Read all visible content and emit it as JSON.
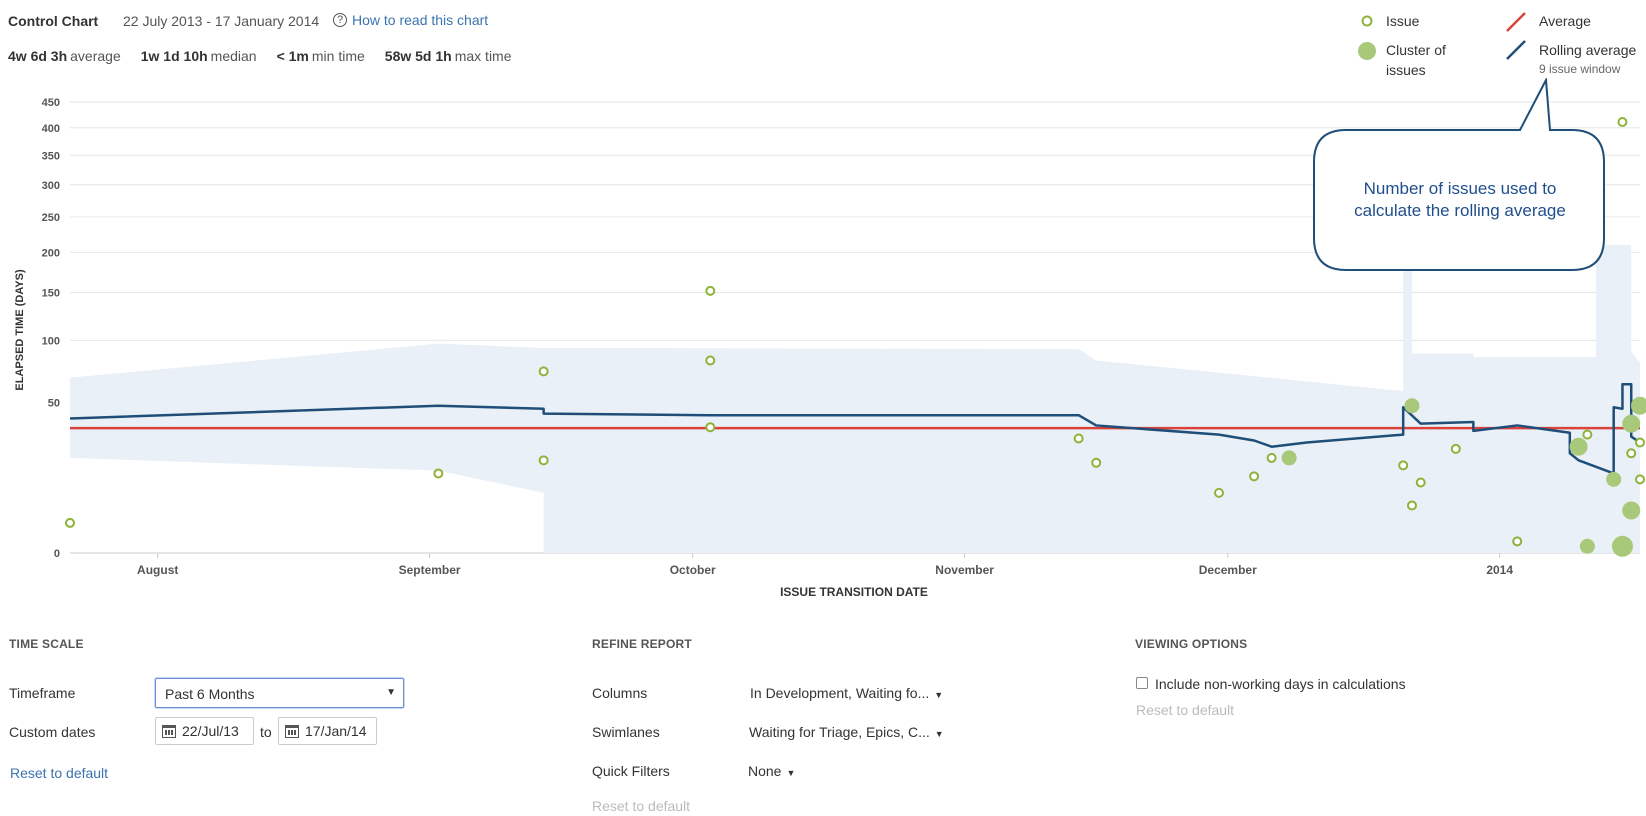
{
  "header": {
    "title": "Control Chart",
    "date_range": "22 July 2013 - 17 January 2014",
    "help_link": "How to read this chart"
  },
  "stats": [
    {
      "value": "4w 6d 3h",
      "label": "average"
    },
    {
      "value": "1w 1d 10h",
      "label": "median"
    },
    {
      "value": "< 1m",
      "label": "min time"
    },
    {
      "value": "58w 5d 1h",
      "label": "max time"
    }
  ],
  "legend": {
    "issue": "Issue",
    "cluster_line1": "Cluster of",
    "cluster_line2": "issues",
    "average": "Average",
    "rolling": "Rolling average",
    "rolling_window": "9 issue window"
  },
  "callout": {
    "line1": "Number of issues used to",
    "line2": "calculate the rolling average"
  },
  "colors": {
    "issue": "#8db33a",
    "cluster": "#a9c97a",
    "average": "#d9433b",
    "rolling": "#1f4e79",
    "band": "#e9f0f7",
    "link": "#3b73af"
  },
  "chart_data": {
    "type": "scatter",
    "xlabel": "ISSUE TRANSITION DATE",
    "ylabel": "ELAPSED TIME (DAYS)",
    "x_ticks": [
      "August",
      "September",
      "October",
      "November",
      "December",
      "2014"
    ],
    "y_ticks": [
      0,
      50,
      100,
      150,
      200,
      250,
      300,
      350,
      400,
      450
    ],
    "y_scale": "sqrt",
    "ylim": [
      0,
      450
    ],
    "xlim": [
      "2013-07-22",
      "2014-01-17"
    ],
    "average_days": 34.5,
    "issues": [
      {
        "date": "2013-07-22",
        "days": 2
      },
      {
        "date": "2013-09-02",
        "days": 14
      },
      {
        "date": "2013-09-14",
        "days": 73
      },
      {
        "date": "2013-09-14",
        "days": 19
      },
      {
        "date": "2013-10-03",
        "days": 152
      },
      {
        "date": "2013-10-03",
        "days": 82
      },
      {
        "date": "2013-10-03",
        "days": 35
      },
      {
        "date": "2013-11-14",
        "days": 29
      },
      {
        "date": "2013-11-16",
        "days": 18
      },
      {
        "date": "2013-11-30",
        "days": 8
      },
      {
        "date": "2013-12-04",
        "days": 13
      },
      {
        "date": "2013-12-06",
        "days": 20
      },
      {
        "date": "2013-12-21",
        "days": 17
      },
      {
        "date": "2013-12-22",
        "days": 5
      },
      {
        "date": "2013-12-23",
        "days": 11
      },
      {
        "date": "2013-12-27",
        "days": 24
      },
      {
        "date": "2014-01-03",
        "days": 0.3
      },
      {
        "date": "2014-01-11",
        "days": 31
      },
      {
        "date": "2014-01-15",
        "days": 411
      },
      {
        "date": "2014-01-16",
        "days": 22
      },
      {
        "date": "2014-01-17",
        "days": 27
      },
      {
        "date": "2014-01-17",
        "days": 12
      }
    ],
    "clusters": [
      {
        "date": "2013-12-08",
        "days": 20,
        "size": 1
      },
      {
        "date": "2013-12-22",
        "days": 48,
        "size": 1
      },
      {
        "date": "2014-01-10",
        "days": 25,
        "size": 2
      },
      {
        "date": "2014-01-11",
        "days": 0.1,
        "size": 1
      },
      {
        "date": "2014-01-14",
        "days": 12,
        "size": 1
      },
      {
        "date": "2014-01-15",
        "days": 0.1,
        "size": 3
      },
      {
        "date": "2014-01-16",
        "days": 4,
        "size": 2
      },
      {
        "date": "2014-01-16",
        "days": 37,
        "size": 2
      },
      {
        "date": "2014-01-17",
        "days": 48,
        "size": 2
      }
    ],
    "rolling_average": [
      {
        "date": "2013-07-22",
        "days": 40
      },
      {
        "date": "2013-09-02",
        "days": 48
      },
      {
        "date": "2013-09-14",
        "days": 46
      },
      {
        "date": "2013-09-14",
        "days": 43
      },
      {
        "date": "2013-10-03",
        "days": 42
      },
      {
        "date": "2013-11-14",
        "days": 42
      },
      {
        "date": "2013-11-16",
        "days": 36
      },
      {
        "date": "2013-11-30",
        "days": 31
      },
      {
        "date": "2013-12-04",
        "days": 28
      },
      {
        "date": "2013-12-06",
        "days": 25
      },
      {
        "date": "2013-12-10",
        "days": 27
      },
      {
        "date": "2013-12-21",
        "days": 31
      },
      {
        "date": "2013-12-21",
        "days": 47
      },
      {
        "date": "2013-12-23",
        "days": 37
      },
      {
        "date": "2013-12-29",
        "days": 38
      },
      {
        "date": "2013-12-29",
        "days": 33
      },
      {
        "date": "2014-01-03",
        "days": 36
      },
      {
        "date": "2014-01-09",
        "days": 32
      },
      {
        "date": "2014-01-09",
        "days": 22
      },
      {
        "date": "2014-01-10",
        "days": 19
      },
      {
        "date": "2014-01-14",
        "days": 14
      },
      {
        "date": "2014-01-14",
        "days": 47
      },
      {
        "date": "2014-01-15",
        "days": 46
      },
      {
        "date": "2014-01-15",
        "days": 63
      },
      {
        "date": "2014-01-16",
        "days": 63
      },
      {
        "date": "2014-01-16",
        "days": 30
      },
      {
        "date": "2014-01-17",
        "days": 27
      }
    ],
    "band_upper": [
      {
        "date": "2013-07-22",
        "days": 68
      },
      {
        "date": "2013-09-02",
        "days": 97
      },
      {
        "date": "2013-09-14",
        "days": 93
      },
      {
        "date": "2013-11-14",
        "days": 92
      },
      {
        "date": "2013-11-16",
        "days": 82
      },
      {
        "date": "2013-12-21",
        "days": 58
      },
      {
        "date": "2013-12-21",
        "days": 180
      },
      {
        "date": "2013-12-22",
        "days": 180
      },
      {
        "date": "2013-12-22",
        "days": 88
      },
      {
        "date": "2013-12-29",
        "days": 88
      },
      {
        "date": "2013-12-29",
        "days": 85
      },
      {
        "date": "2014-01-12",
        "days": 85
      },
      {
        "date": "2014-01-12",
        "days": 210
      },
      {
        "date": "2014-01-16",
        "days": 210
      },
      {
        "date": "2014-01-16",
        "days": 90
      },
      {
        "date": "2014-01-17",
        "days": 80
      }
    ],
    "band_lower": [
      {
        "date": "2013-07-22",
        "days": 20
      },
      {
        "date": "2013-09-02",
        "days": 15
      },
      {
        "date": "2013-09-14",
        "days": 8
      },
      {
        "date": "2013-09-14",
        "days": 0
      },
      {
        "date": "2014-01-17",
        "days": 0
      }
    ]
  },
  "time_scale": {
    "title": "TIME SCALE",
    "timeframe_label": "Timeframe",
    "timeframe_value": "Past 6 Months",
    "custom_dates_label": "Custom dates",
    "date_from": "22/Jul/13",
    "to_label": "to",
    "date_to": "17/Jan/14",
    "reset": "Reset to default"
  },
  "refine": {
    "title": "REFINE REPORT",
    "columns_label": "Columns",
    "columns_value": "In Development, Waiting fo...",
    "swimlanes_label": "Swimlanes",
    "swimlanes_value": "Waiting for Triage, Epics, C...",
    "filters_label": "Quick Filters",
    "filters_value": "None",
    "reset": "Reset to default"
  },
  "viewing": {
    "title": "VIEWING OPTIONS",
    "nonworking_label": "Include non-working days in calculations",
    "reset": "Reset to default"
  }
}
